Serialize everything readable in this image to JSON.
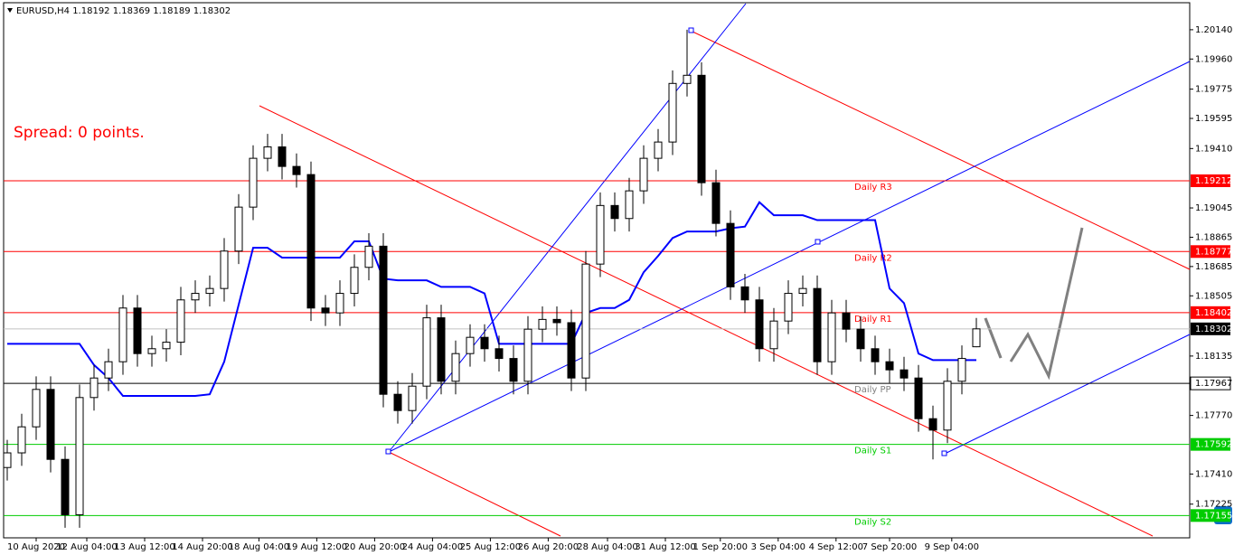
{
  "chart_data": {
    "type": "candlestick",
    "title": "EURUSD,H4  1.18192 1.18369 1.18189 1.18302",
    "annotation": "Spread: 0 points.",
    "open": [
      1.1745,
      1.1754,
      1.177,
      1.1793,
      1.175,
      1.1716,
      1.1788,
      1.18,
      1.181,
      1.1843,
      1.1815,
      1.1818,
      1.1822,
      1.1848,
      1.1852,
      1.1855,
      1.1878,
      1.1905,
      1.1935,
      1.1942,
      1.193,
      1.1925,
      1.1843,
      1.184,
      1.1852,
      1.1868,
      1.1881,
      1.179,
      1.178,
      1.1795,
      1.1837,
      1.1798,
      1.1815,
      1.1825,
      1.1818,
      1.1812,
      1.1798,
      1.183,
      1.1836,
      1.1834,
      1.18,
      1.187,
      1.1906,
      1.1898,
      1.1915,
      1.1935,
      1.1945,
      1.1981,
      1.1986,
      1.192,
      1.1895,
      1.1856,
      1.1848,
      1.1818,
      1.1835,
      1.1852,
      1.1855,
      1.181,
      1.184,
      1.183,
      1.1818,
      1.181,
      1.1805,
      1.18,
      1.1775,
      1.1768,
      1.1798,
      1.18192
    ],
    "high": [
      1.1762,
      1.1778,
      1.1801,
      1.1801,
      1.1758,
      1.1796,
      1.1808,
      1.1818,
      1.1851,
      1.1851,
      1.1826,
      1.183,
      1.1856,
      1.186,
      1.1863,
      1.1886,
      1.1913,
      1.1943,
      1.195,
      1.195,
      1.1938,
      1.1933,
      1.1851,
      1.186,
      1.1876,
      1.1889,
      1.1889,
      1.1798,
      1.1803,
      1.1845,
      1.1845,
      1.1823,
      1.1833,
      1.1833,
      1.1826,
      1.182,
      1.1838,
      1.1844,
      1.1844,
      1.1842,
      1.1878,
      1.1914,
      1.1914,
      1.1923,
      1.1943,
      1.1953,
      1.1989,
      1.2014,
      1.1994,
      1.1928,
      1.1903,
      1.1864,
      1.1856,
      1.1843,
      1.186,
      1.1863,
      1.1863,
      1.1848,
      1.1848,
      1.1838,
      1.1826,
      1.1818,
      1.1813,
      1.1808,
      1.1783,
      1.1806,
      1.182,
      1.18369
    ],
    "low": [
      1.1737,
      1.1746,
      1.1762,
      1.1742,
      1.1708,
      1.1708,
      1.178,
      1.1792,
      1.1802,
      1.1807,
      1.1807,
      1.181,
      1.1814,
      1.184,
      1.1844,
      1.1847,
      1.187,
      1.1897,
      1.1927,
      1.1922,
      1.1917,
      1.1835,
      1.1832,
      1.1832,
      1.1844,
      1.186,
      1.1782,
      1.1772,
      1.1772,
      1.1787,
      1.179,
      1.179,
      1.1807,
      1.181,
      1.1804,
      1.179,
      1.179,
      1.1822,
      1.1826,
      1.1792,
      1.1792,
      1.1862,
      1.189,
      1.189,
      1.1907,
      1.1927,
      1.1937,
      1.1973,
      1.1912,
      1.1887,
      1.1848,
      1.184,
      1.181,
      1.181,
      1.1827,
      1.1844,
      1.1802,
      1.1802,
      1.1822,
      1.181,
      1.1802,
      1.1797,
      1.1792,
      1.1767,
      1.175,
      1.176,
      1.179,
      1.18189
    ],
    "close": [
      1.1754,
      1.177,
      1.1793,
      1.175,
      1.1716,
      1.1788,
      1.18,
      1.181,
      1.1843,
      1.1815,
      1.1818,
      1.1822,
      1.1848,
      1.1852,
      1.1855,
      1.1878,
      1.1905,
      1.1935,
      1.1942,
      1.193,
      1.1925,
      1.1843,
      1.184,
      1.1852,
      1.1868,
      1.1881,
      1.179,
      1.178,
      1.1795,
      1.1837,
      1.1798,
      1.1815,
      1.1825,
      1.1818,
      1.1812,
      1.1798,
      1.183,
      1.1836,
      1.1834,
      1.18,
      1.187,
      1.1906,
      1.1898,
      1.1915,
      1.1935,
      1.1945,
      1.1981,
      1.1986,
      1.192,
      1.1895,
      1.1856,
      1.1848,
      1.1818,
      1.1835,
      1.1852,
      1.1855,
      1.181,
      1.184,
      1.183,
      1.1818,
      1.181,
      1.1805,
      1.18,
      1.1775,
      1.1768,
      1.1798,
      1.1812,
      1.18302
    ],
    "indicator": {
      "color": "#0000ff",
      "values": [
        1.1821,
        1.1821,
        1.1821,
        1.1821,
        1.1821,
        1.1821,
        1.1808,
        1.18,
        1.1789,
        1.1789,
        1.1789,
        1.1789,
        1.1789,
        1.1789,
        1.179,
        1.181,
        1.1845,
        1.188,
        1.188,
        1.1874,
        1.1874,
        1.1874,
        1.1874,
        1.1874,
        1.1884,
        1.1884,
        1.1861,
        1.186,
        1.186,
        1.186,
        1.1856,
        1.1856,
        1.1856,
        1.1852,
        1.1821,
        1.1821,
        1.1821,
        1.1821,
        1.1821,
        1.1821,
        1.184,
        1.1843,
        1.1843,
        1.1848,
        1.1865,
        1.1875,
        1.1886,
        1.189,
        1.189,
        1.189,
        1.1892,
        1.1893,
        1.1908,
        1.19,
        1.19,
        1.19,
        1.1897,
        1.1897,
        1.1897,
        1.1897,
        1.1897,
        1.1855,
        1.1846,
        1.1815,
        1.1811,
        1.1811,
        1.1811,
        1.1811
      ]
    },
    "levels": [
      {
        "name": "Daily R3",
        "value": 1.19212,
        "color": "#ff0000"
      },
      {
        "name": "Daily R2",
        "value": 1.18777,
        "color": "#ff0000"
      },
      {
        "name": "Daily R1",
        "value": 1.18402,
        "color": "#ff0000"
      },
      {
        "name": "Daily PP",
        "value": 1.17967,
        "color": "#000000"
      },
      {
        "name": "Daily S1",
        "value": 1.17592,
        "color": "#00cc00"
      },
      {
        "name": "Daily S2",
        "value": 1.17155,
        "color": "#00cc00"
      }
    ],
    "current_price": 1.18302,
    "ylim": [
      1.17018,
      1.20306
    ],
    "yticks": [
      {
        "value": 1.2014,
        "label": "1.20140"
      },
      {
        "value": 1.1996,
        "label": "1.19960"
      },
      {
        "value": 1.19775,
        "label": "1.19775"
      },
      {
        "value": 1.19595,
        "label": "1.19595"
      },
      {
        "value": 1.1941,
        "label": "1.19410"
      },
      {
        "value": 1.19045,
        "label": "1.19045"
      },
      {
        "value": 1.18865,
        "label": "1.18865"
      },
      {
        "value": 1.18685,
        "label": "1.18685"
      },
      {
        "value": 1.18505,
        "label": "1.18505"
      },
      {
        "value": 1.18135,
        "label": "1.18135"
      },
      {
        "value": 1.1777,
        "label": "1.17770"
      },
      {
        "value": 1.1741,
        "label": "1.17410"
      },
      {
        "value": 1.17225,
        "label": "1.17225"
      }
    ],
    "xticks": [
      {
        "value": 2,
        "label": "10 Aug 2020"
      },
      {
        "value": 5.5,
        "label": "12 Aug 04:00"
      },
      {
        "value": 9.5,
        "label": "13 Aug 12:00"
      },
      {
        "value": 13.5,
        "label": "14 Aug 20:00"
      },
      {
        "value": 17.4,
        "label": "18 Aug 04:00"
      },
      {
        "value": 21.4,
        "label": "19 Aug 12:00"
      },
      {
        "value": 25.4,
        "label": "20 Aug 20:00"
      },
      {
        "value": 29.4,
        "label": "24 Aug 04:00"
      },
      {
        "value": 33.4,
        "label": "25 Aug 12:00"
      },
      {
        "value": 37.4,
        "label": "26 Aug 20:00"
      },
      {
        "value": 41.5,
        "label": "28 Aug 04:00"
      },
      {
        "value": 45.5,
        "label": "31 Aug 12:00"
      },
      {
        "value": 49.3,
        "label": "1 Sep 20:00"
      },
      {
        "value": 53.3,
        "label": "3 Sep 04:00"
      },
      {
        "value": 57.3,
        "label": "4 Sep 12:00"
      },
      {
        "value": 61,
        "label": "7 Sep 20:00"
      },
      {
        "value": 65.3,
        "label": "9 Sep 04:00"
      }
    ]
  }
}
